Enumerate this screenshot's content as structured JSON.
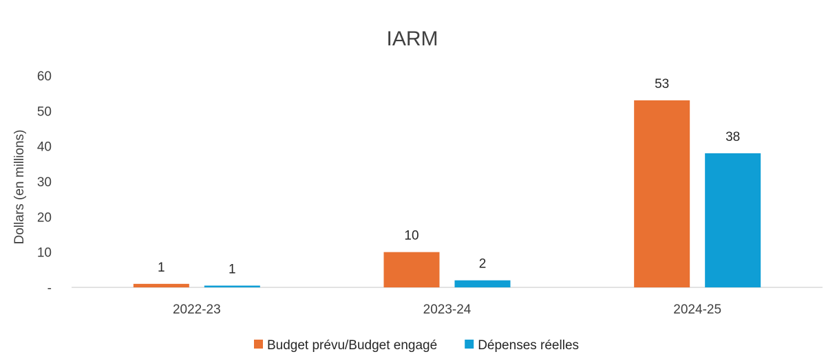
{
  "chart_data": {
    "type": "bar",
    "title": "IARM",
    "ylabel": "Dollars (en millions)",
    "xlabel": "",
    "categories": [
      "2022-23",
      "2023-24",
      "2024-25"
    ],
    "ylim": [
      0,
      60
    ],
    "yticks": [
      0,
      10,
      20,
      30,
      40,
      50,
      60
    ],
    "ytick_labels": [
      "-",
      "10",
      "20",
      "30",
      "40",
      "50",
      "60"
    ],
    "grid": false,
    "legend_position": "bottom",
    "series": [
      {
        "name": "Budget prévu/Budget engagé",
        "color": "#E97132",
        "values": [
          1,
          10,
          53
        ],
        "data_labels": [
          "1",
          "10",
          "53"
        ]
      },
      {
        "name": "Dépenses réelles",
        "color": "#0F9ED5",
        "values": [
          0.5,
          2,
          38
        ],
        "data_labels": [
          "1",
          "2",
          "38"
        ]
      }
    ]
  }
}
